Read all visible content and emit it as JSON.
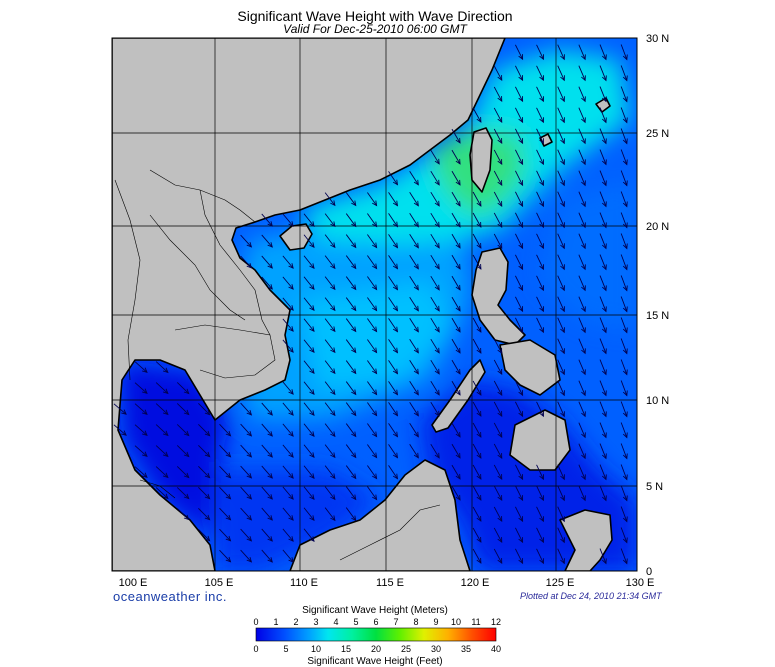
{
  "title": "Significant Wave Height with Wave Direction",
  "subtitle": "Valid For Dec-25-2010 06:00 GMT",
  "brand": "oceanweather inc.",
  "plotted": "Plotted at Dec 24, 2010 21:34 GMT",
  "lon_labels": [
    "100 E",
    "105 E",
    "110 E",
    "115 E",
    "120 E",
    "125 E",
    "130 E"
  ],
  "lat_labels": [
    "0",
    "5 N",
    "10 N",
    "15 N",
    "20 N",
    "25 N",
    "30 N"
  ],
  "legend": {
    "title_meters": "Significant Wave Height (Meters)",
    "title_feet": "Significant Wave Height (Feet)",
    "meters_ticks": [
      "0",
      "1",
      "2",
      "3",
      "4",
      "5",
      "6",
      "7",
      "8",
      "9",
      "10",
      "11",
      "12"
    ],
    "feet_ticks": [
      "0",
      "5",
      "10",
      "15",
      "20",
      "25",
      "30",
      "35",
      "40"
    ]
  },
  "colors": {
    "land": "#c0c0c0",
    "deep_blue": "#0018e0",
    "mid_blue": "#0078ff",
    "cyan": "#00ddee",
    "green": "#2be07a",
    "arrow": "#000050",
    "grid": "#000000"
  }
}
